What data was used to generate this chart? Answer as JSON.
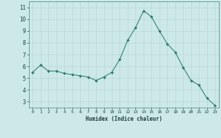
{
  "x": [
    0,
    1,
    2,
    3,
    4,
    5,
    6,
    7,
    8,
    9,
    10,
    11,
    12,
    13,
    14,
    15,
    16,
    17,
    18,
    19,
    20,
    21,
    22,
    23
  ],
  "y": [
    5.5,
    6.1,
    5.6,
    5.6,
    5.4,
    5.3,
    5.2,
    5.1,
    4.8,
    5.1,
    5.5,
    6.6,
    8.2,
    9.3,
    10.7,
    10.2,
    9.0,
    7.9,
    7.2,
    5.9,
    4.8,
    4.4,
    3.3,
    2.7
  ],
  "xlabel": "Humidex (Indice chaleur)",
  "xlim": [
    -0.5,
    23.5
  ],
  "ylim": [
    2.5,
    11.5
  ],
  "yticks": [
    3,
    4,
    5,
    6,
    7,
    8,
    9,
    10,
    11
  ],
  "xticks": [
    0,
    1,
    2,
    3,
    4,
    5,
    6,
    7,
    8,
    9,
    10,
    11,
    12,
    13,
    14,
    15,
    16,
    17,
    18,
    19,
    20,
    21,
    22,
    23
  ],
  "line_color": "#2e7d6e",
  "marker_color": "#2e7d6e",
  "bg_color": "#cce8e8",
  "grid_color": "#b8d4d4",
  "tick_label_color": "#1a4040",
  "xlabel_color": "#1a3c3c",
  "spine_color": "#5a9090"
}
